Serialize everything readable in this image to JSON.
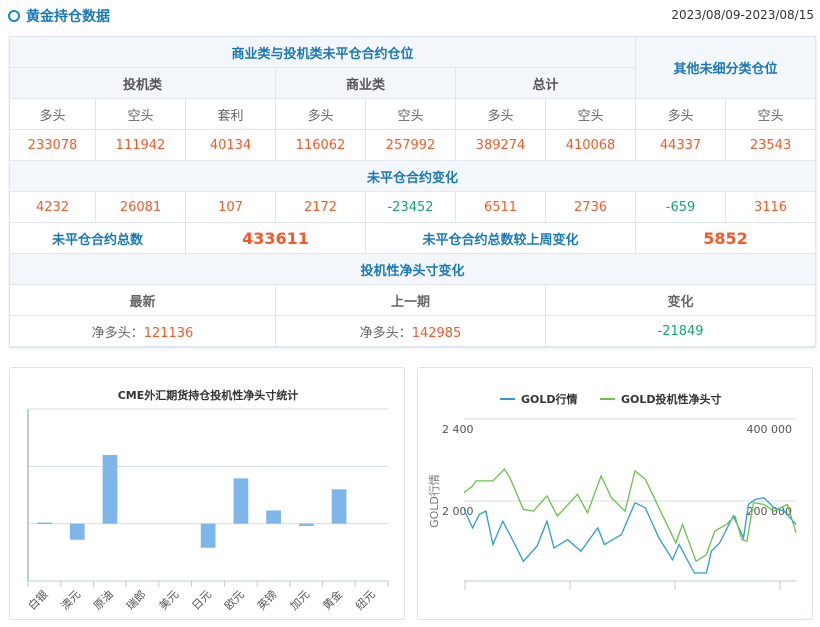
{
  "header": {
    "title": "黄金持仓数据",
    "date_range": "2023/08/09-2023/08/15"
  },
  "table": {
    "section1": "商业类与投机类未平仓合约仓位",
    "other": "其他未细分类仓位",
    "groups": [
      "投机类",
      "商业类",
      "总计"
    ],
    "subheads": [
      "多头",
      "空头",
      "套利",
      "多头",
      "空头",
      "多头",
      "空头",
      "多头",
      "空头"
    ],
    "positions": [
      "233078",
      "111942",
      "40134",
      "116062",
      "257992",
      "389274",
      "410068",
      "44337",
      "23543"
    ],
    "section2": "未平仓合约变化",
    "changes": [
      "4232",
      "26081",
      "107",
      "2172",
      "-23452",
      "6511",
      "2736",
      "-659",
      "3116"
    ],
    "total_label": "未平仓合约总数",
    "total_value": "433611",
    "weekly_label": "未平仓合约总数较上周变化",
    "weekly_value": "5852",
    "section3": "投机性净头寸变化",
    "net_heads": [
      "最新",
      "上一期",
      "变化"
    ],
    "net_prefix": "净多头：",
    "net_latest": "121136",
    "net_prev": "142985",
    "net_change": "-21849"
  },
  "colors": {
    "up": "#f35a2a",
    "down": "#16a37a",
    "bar": "#7eb6ea",
    "gold": "#2f9bd6",
    "net": "#6cc04a"
  },
  "chart_data": [
    {
      "type": "bar",
      "title": "CME外汇期货持仓投机性净头寸统计",
      "categories": [
        "白银",
        "澳元",
        "原油",
        "瑞郎",
        "美元",
        "日元",
        "欧元",
        "英镑",
        "加元",
        "黄金",
        "纽元"
      ],
      "values": [
        2,
        -28,
        120,
        0,
        0,
        -42,
        79,
        23,
        -4,
        60,
        0
      ],
      "ylim": [
        -100,
        200
      ],
      "grid": true,
      "note": "relative units; y-axis unlabeled"
    },
    {
      "type": "line",
      "legend": [
        "GOLD行情",
        "GOLD投机性净头寸"
      ],
      "legend_position": "top",
      "ylabel": "GOLD行情",
      "left_ticks": [
        "2 400",
        "2 000"
      ],
      "right_ticks": [
        "400 000",
        "200 000"
      ],
      "ylim_left": [
        1610,
        2400
      ],
      "ylim_right": [
        5000,
        400000
      ],
      "xlim": [
        0,
        100
      ],
      "series": [
        {
          "name": "GOLD行情",
          "axis": "left",
          "x": [
            0,
            2.6,
            4.6,
            6.6,
            8.7,
            11.7,
            13.8,
            17.9,
            22,
            25,
            27.1,
            31.2,
            35.2,
            40.3,
            42.3,
            47.4,
            51.5,
            54.6,
            58.7,
            62.8,
            64.8,
            69.4,
            73,
            74.5,
            77,
            81.1,
            84.2,
            85.7,
            87.8,
            90.3,
            93.4,
            96.4,
            100
          ],
          "y": [
            1959,
            1869,
            1935,
            1951,
            1788,
            1902,
            1837,
            1706,
            1780,
            1902,
            1771,
            1812,
            1755,
            1869,
            1788,
            1837,
            1992,
            1967,
            1820,
            1714,
            1788,
            1649,
            1649,
            1755,
            1796,
            1927,
            1820,
            1984,
            2008,
            2016,
            1967,
            1951,
            1886
          ]
        },
        {
          "name": "GOLD投机性净头寸",
          "axis": "right",
          "x": [
            0,
            2.6,
            3.6,
            8.7,
            12.2,
            13.8,
            17.9,
            20.9,
            25,
            28.1,
            34.2,
            37.2,
            41.3,
            44.4,
            48.5,
            51.5,
            54.6,
            58.7,
            63.8,
            65.8,
            69.9,
            73,
            75.5,
            79.1,
            81.6,
            83.7,
            85.2,
            87.2,
            90.3,
            93.4,
            97.4,
            100
          ],
          "y": [
            220400,
            236700,
            249000,
            249000,
            277500,
            257000,
            179600,
            175500,
            212200,
            163300,
            216300,
            171400,
            261200,
            208200,
            175500,
            273400,
            253000,
            183700,
            98000,
            142900,
            53100,
            69400,
            126600,
            142900,
            163300,
            106200,
            102100,
            195900,
            191800,
            175500,
            191800,
            122500
          ]
        }
      ]
    }
  ]
}
